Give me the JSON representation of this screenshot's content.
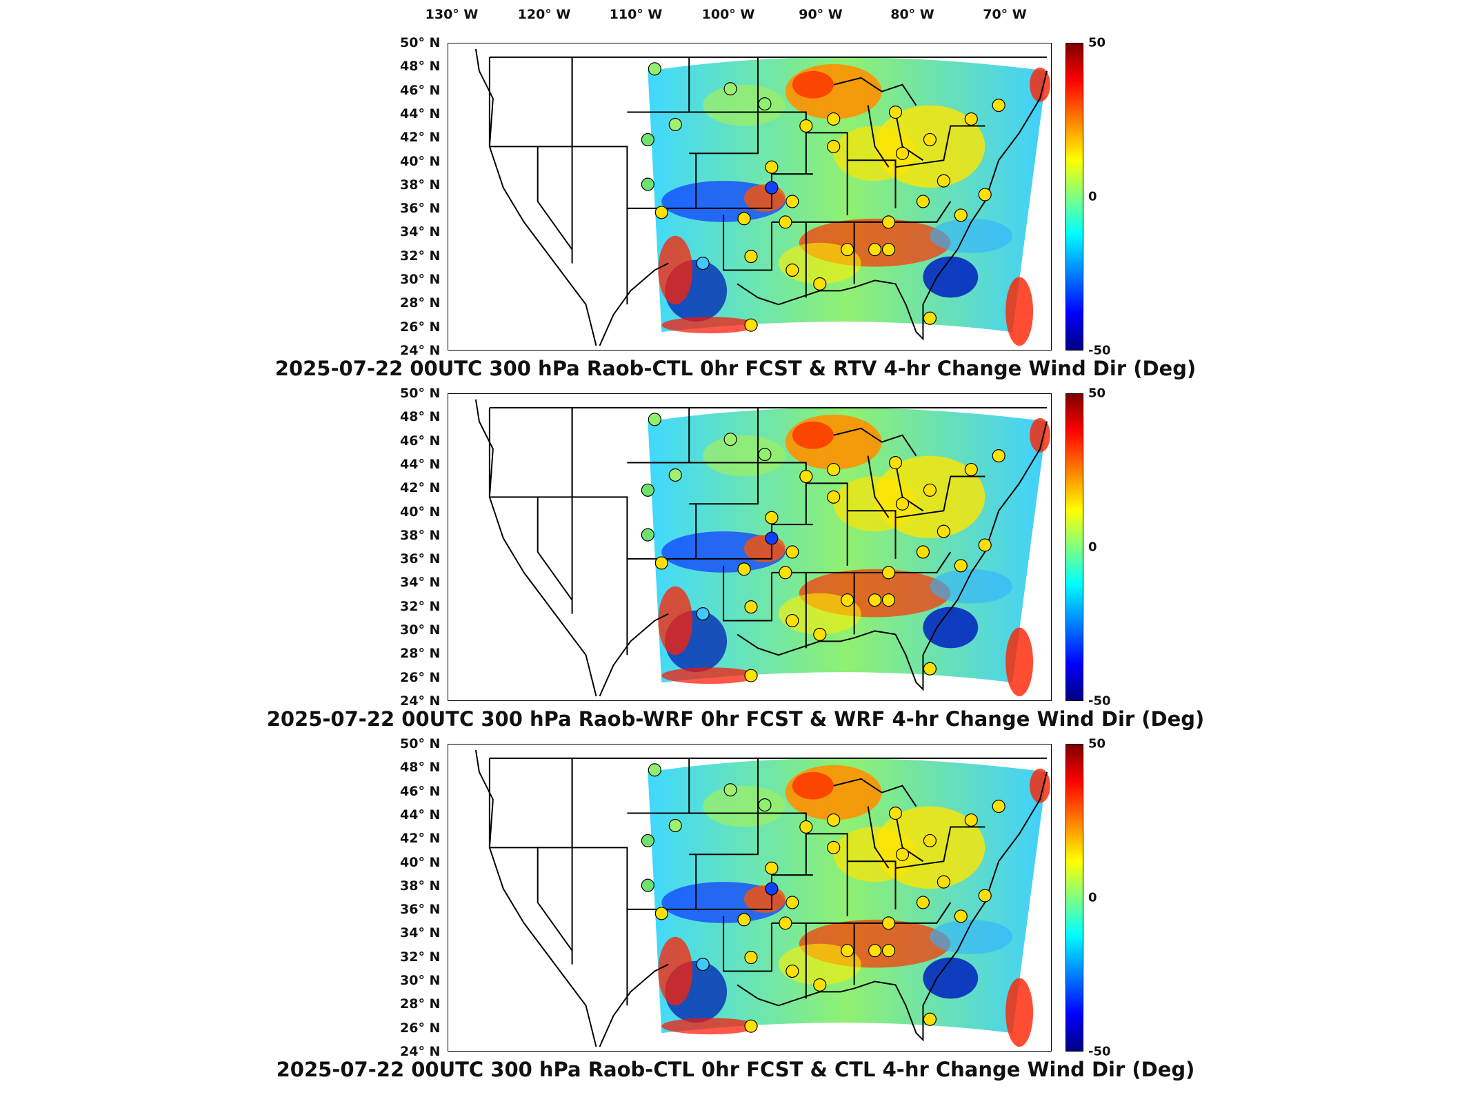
{
  "lon_labels": [
    "130° W",
    "120° W",
    "110° W",
    "100° W",
    "90° W",
    "80° W",
    "70° W"
  ],
  "lat_labels": [
    "50° N",
    "48° N",
    "46° N",
    "44° N",
    "42° N",
    "40° N",
    "38° N",
    "36° N",
    "34° N",
    "32° N",
    "30° N",
    "28° N",
    "26° N",
    "24° N"
  ],
  "colorbar": {
    "max": "50",
    "mid": "0",
    "min": "-50",
    "colormap": "jet"
  },
  "panels": [
    {
      "title": "2025-07-22 00UTC 300 hPa Raob-CTL 0hr FCST & RTV 4-hr Change Wind Dir (Deg)"
    },
    {
      "title": "2025-07-22 00UTC 300 hPa Raob-WRF 0hr FCST & WRF 4-hr Change Wind Dir (Deg)"
    },
    {
      "title": "2025-07-22 00UTC 300 hPa Raob-CTL 0hr FCST & CTL 4-hr Change Wind Dir (Deg)"
    }
  ],
  "colors": {
    "red": "#d00000",
    "orange": "#ff8c00",
    "yellow": "#ffe000",
    "green": "#70e070",
    "cyan": "#40c8ff",
    "blue": "#0030c0"
  }
}
